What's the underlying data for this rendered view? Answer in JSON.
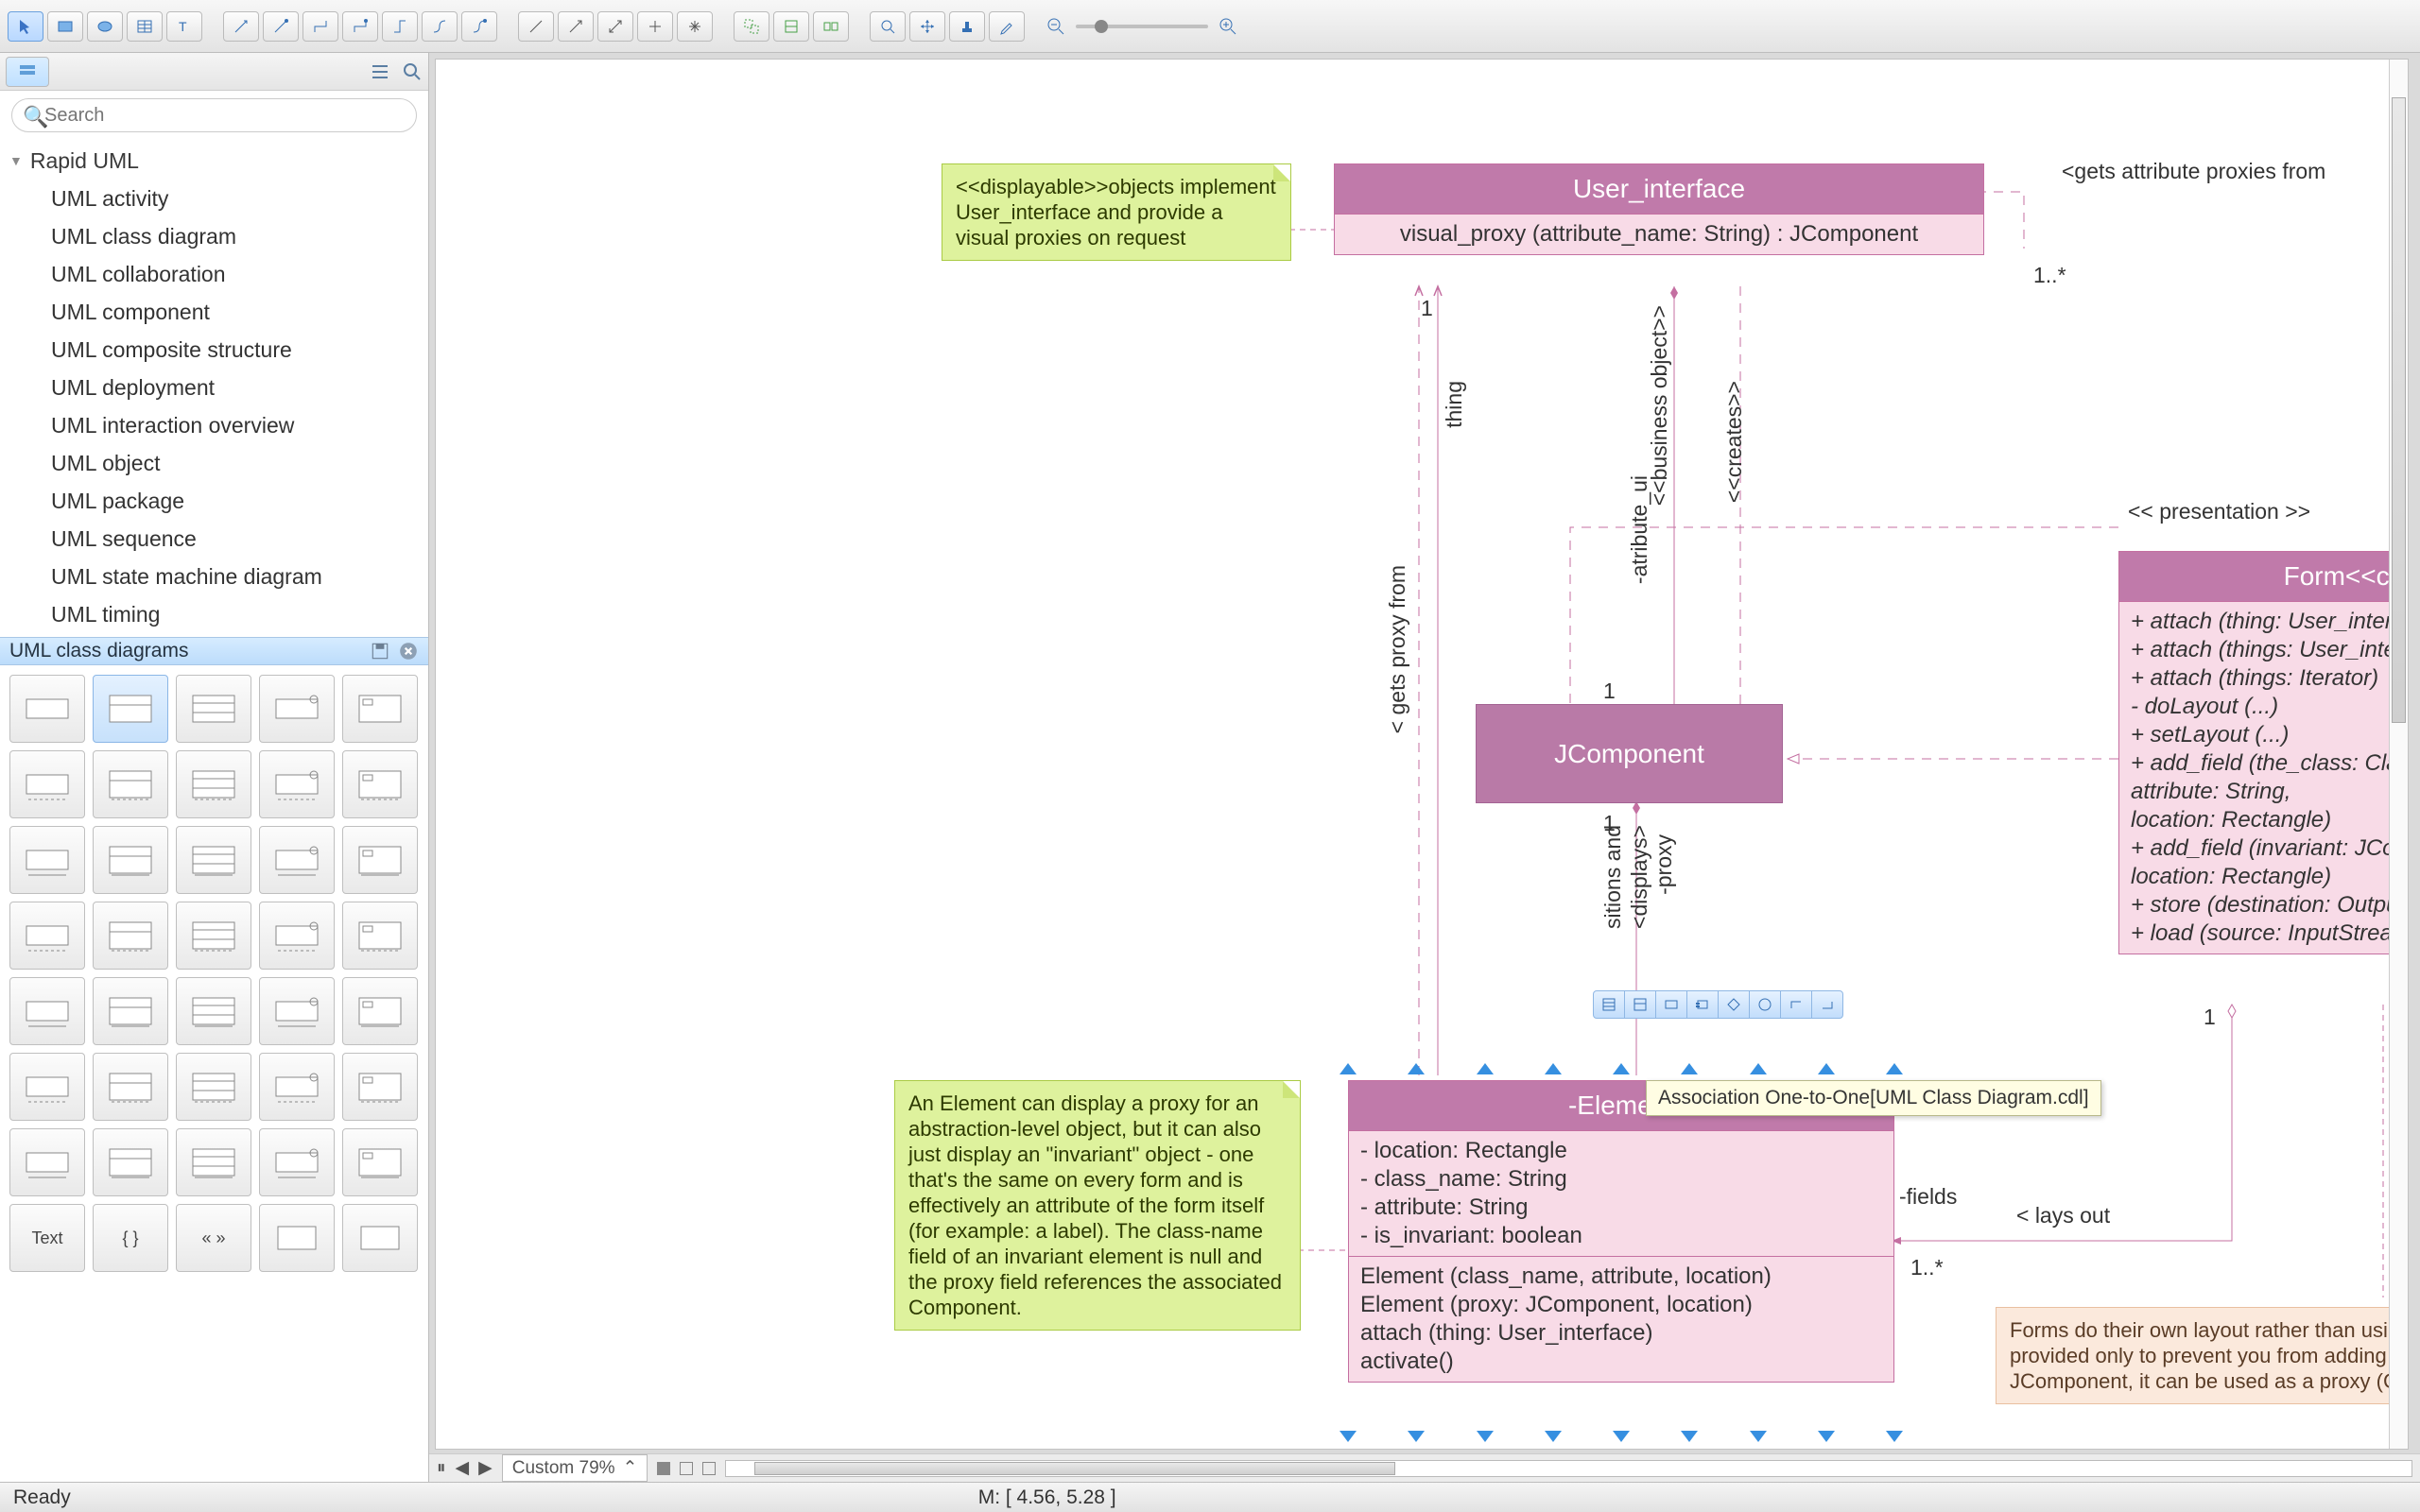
{
  "toolbar": {
    "groups": [
      [
        "pointer",
        "rect",
        "ellipse",
        "table",
        "text"
      ],
      [
        "conn1",
        "conn2",
        "conn3",
        "conn4",
        "conn5",
        "conn6",
        "conn7"
      ],
      [
        "line1",
        "line2",
        "line3",
        "line4",
        "line5"
      ],
      [
        "grp1",
        "grp2",
        "grp3"
      ],
      [
        "zoom-sel",
        "pan",
        "stamp",
        "eyedrop"
      ]
    ]
  },
  "search": {
    "placeholder": "Search"
  },
  "tree": {
    "root": "Rapid UML",
    "items": [
      "UML activity",
      "UML class diagram",
      "UML collaboration",
      "UML component",
      "UML composite structure",
      "UML deployment",
      "UML interaction overview",
      "UML object",
      "UML package",
      "UML sequence",
      "UML state machine diagram",
      "UML timing"
    ]
  },
  "panel_title": "UML class diagrams",
  "element_selection_handles": 9,
  "tooltip_text": "Association One-to-One[UML Class Diagram.cdl]",
  "notes": {
    "displayable": "<<displayable>>objects implement User_interface and provide a visual proxies on request",
    "element": "An Element can display a proxy for an abstraction-level object, but it can also just display an \"invariant\" object - one that's the same on every form and is effectively an attribute of the form itself (for example: a label). The class-name field of an invariant element is null and the proxy field references the associated Component.",
    "form": "Forms do their own layout rather than using a layout manager. setLayout() is provided only to prevent you from adding a layout manager.\nSince a form is a JComponent, it can be used as a proxy (Composite)"
  },
  "classes": {
    "user_interface": {
      "title": "User_interface",
      "op": "visual_proxy (attribute_name: String) : JComponent"
    },
    "jcomponent": {
      "title": "JComponent"
    },
    "element": {
      "title": "-Element",
      "attrs": [
        "- location: Rectangle",
        "- class_name: String",
        "- attribute: String",
        "- is_invariant: boolean"
      ],
      "ops": [
        "Element (class_name, attribute, location)",
        "Element (proxy: JComponent, location)",
        "attach (thing: User_interface)",
        "activate()"
      ]
    },
    "form": {
      "title": "Form<<control>>",
      "ops": [
        "+ attach (thing: User_interface)",
        "+ attach (things: User_interface[])",
        "+ attach (things: Iterator)",
        "- doLayout (...)",
        "+ setLayout (...)",
        "+ add_field (the_class: Class_name,",
        "                      attribute: String,",
        "                      location: Rectangle)",
        "+ add_field (invariant: JComponent,",
        "                      location: Rectangle)",
        "+ store (destination: OutputStream)",
        "+ load (source: InputStream)"
      ]
    }
  },
  "labels": {
    "gets_attr": "<gets attribute proxies from",
    "m_1star_a": "1..*",
    "presentation": "<< presentation >>",
    "one_a": "1",
    "thing": "thing",
    "one_b": "1",
    "gets_proxy": "< gets proxy from",
    "bizobj": "<<business object>>",
    "atr_ui": "-atribute_ui",
    "creates": "<<creates>>",
    "one_c": "1",
    "proxy": "-proxy",
    "displays": "<displays>",
    "positions": "sitions and",
    "one_d": "1",
    "fields": "-fields",
    "laysout": "< lays out",
    "m_1star_b": "1..*",
    "one_e": "1"
  },
  "zoom_label": "Custom 79%",
  "status_ready": "Ready",
  "status_coord": "M: [ 4.56, 5.28 ]",
  "colors": {
    "uml_header": "#c07aaa",
    "uml_body": "#f8dbe7",
    "uml_border": "#c46fa1",
    "note_green": "#def29d",
    "note_pink": "#fbe9dc",
    "selection_blue": "#368fe0"
  }
}
